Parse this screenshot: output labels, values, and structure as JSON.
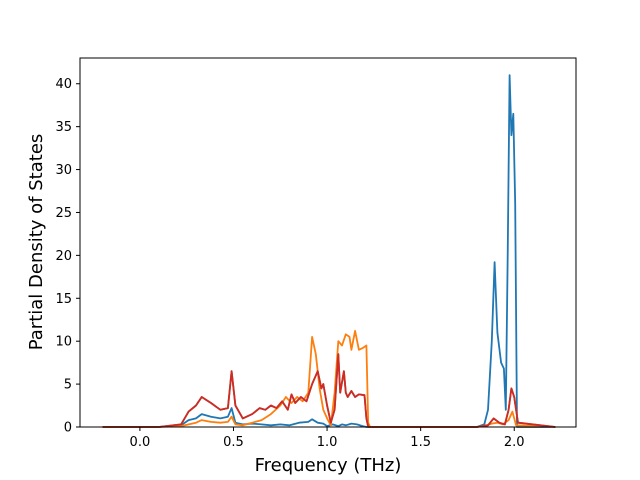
{
  "chart_data": {
    "type": "line",
    "title": "",
    "xlabel": "Frequency (THz)",
    "ylabel": "Partial Density of States",
    "xlim": [
      -0.32,
      2.33
    ],
    "ylim": [
      0,
      43
    ],
    "xticks": [
      0.0,
      0.5,
      1.0,
      1.5,
      2.0
    ],
    "xtick_labels": [
      "0.0",
      "0.5",
      "1.0",
      "1.5",
      "2.0"
    ],
    "yticks": [
      0,
      5,
      10,
      15,
      20,
      25,
      30,
      35,
      40
    ],
    "ytick_labels": [
      "0",
      "5",
      "10",
      "15",
      "20",
      "25",
      "30",
      "35",
      "40"
    ],
    "grid": false,
    "legend": "none",
    "series": [
      {
        "color": "#1f77b4",
        "x": [
          -0.2,
          0.1,
          0.22,
          0.26,
          0.3,
          0.33,
          0.38,
          0.43,
          0.47,
          0.49,
          0.51,
          0.55,
          0.6,
          0.65,
          0.7,
          0.75,
          0.8,
          0.85,
          0.9,
          0.92,
          0.95,
          0.98,
          1.0,
          1.03,
          1.06,
          1.08,
          1.1,
          1.13,
          1.16,
          1.19,
          1.21,
          1.23,
          1.4,
          1.8,
          1.84,
          1.86,
          1.88,
          1.895,
          1.91,
          1.93,
          1.945,
          1.955,
          1.965,
          1.975,
          1.985,
          1.995,
          2.005,
          2.015,
          2.22
        ],
        "values": [
          0,
          0,
          0.2,
          0.8,
          1.0,
          1.5,
          1.2,
          1.0,
          1.2,
          2.2,
          0.5,
          0.3,
          0.4,
          0.3,
          0.2,
          0.3,
          0.2,
          0.5,
          0.6,
          0.9,
          0.5,
          0.4,
          0.1,
          0.3,
          0.1,
          0.3,
          0.2,
          0.4,
          0.3,
          0.1,
          0.0,
          0,
          0,
          0,
          0.3,
          2.0,
          10.0,
          19.2,
          11.0,
          7.5,
          6.8,
          2.0,
          20.0,
          41.0,
          34.0,
          36.5,
          26.0,
          0,
          0
        ]
      },
      {
        "color": "#ff7f0e",
        "x": [
          -0.2,
          0.1,
          0.22,
          0.26,
          0.3,
          0.33,
          0.38,
          0.43,
          0.47,
          0.49,
          0.51,
          0.55,
          0.6,
          0.65,
          0.7,
          0.75,
          0.78,
          0.81,
          0.84,
          0.87,
          0.9,
          0.92,
          0.94,
          0.96,
          0.98,
          1.0,
          1.02,
          1.04,
          1.06,
          1.08,
          1.1,
          1.12,
          1.13,
          1.15,
          1.17,
          1.19,
          1.21,
          1.22,
          1.23,
          1.4,
          1.8,
          1.85,
          1.88,
          1.91,
          1.94,
          1.97,
          1.99,
          2.01,
          2.22
        ],
        "values": [
          0,
          0,
          0.1,
          0.3,
          0.5,
          0.8,
          0.6,
          0.5,
          0.6,
          1.2,
          0.3,
          0.2,
          0.5,
          0.8,
          1.5,
          2.5,
          3.5,
          2.8,
          3.5,
          3.0,
          4.0,
          10.5,
          8.5,
          4.5,
          2.0,
          1.0,
          0.2,
          4.0,
          10.0,
          9.5,
          10.8,
          10.5,
          9.0,
          11.2,
          9.0,
          9.2,
          9.5,
          0.5,
          0,
          0,
          0,
          0.2,
          0.4,
          0.5,
          0.3,
          0.8,
          1.8,
          0.2,
          0
        ]
      },
      {
        "color": "#2ca02c",
        "x": [
          -0.2,
          0.1,
          0.22,
          0.26,
          0.3,
          0.33,
          0.38,
          0.43,
          0.47,
          0.49,
          0.51,
          0.55,
          0.6,
          0.64,
          0.67,
          0.7,
          0.73,
          0.76,
          0.79,
          0.81,
          0.83,
          0.86,
          0.89,
          0.92,
          0.95,
          0.97,
          0.98,
          1.0,
          1.02,
          1.04,
          1.06,
          1.07,
          1.09,
          1.1,
          1.11,
          1.13,
          1.15,
          1.17,
          1.2,
          1.21,
          1.22,
          1.4,
          1.8,
          1.86,
          1.89,
          1.92,
          1.95,
          1.97,
          1.985,
          2.0,
          2.02,
          2.22
        ],
        "values": [
          0,
          0,
          0.3,
          1.8,
          2.5,
          3.5,
          2.8,
          2.0,
          2.2,
          6.5,
          2.5,
          1.0,
          1.5,
          2.2,
          2.0,
          2.5,
          2.2,
          3.0,
          2.0,
          3.8,
          2.8,
          3.5,
          3.0,
          5.0,
          6.5,
          4.5,
          5.0,
          2.5,
          0.5,
          2.0,
          8.5,
          4.0,
          6.5,
          4.0,
          3.5,
          4.2,
          3.5,
          3.8,
          3.7,
          1.0,
          0,
          0,
          0,
          0.2,
          1.0,
          0.5,
          0.3,
          2.0,
          4.5,
          3.5,
          0.5,
          0
        ]
      },
      {
        "color": "#d62728",
        "x": [
          -0.2,
          0.1,
          0.22,
          0.26,
          0.3,
          0.33,
          0.38,
          0.43,
          0.47,
          0.49,
          0.51,
          0.55,
          0.6,
          0.64,
          0.67,
          0.7,
          0.73,
          0.76,
          0.79,
          0.81,
          0.83,
          0.86,
          0.89,
          0.92,
          0.95,
          0.97,
          0.98,
          1.0,
          1.02,
          1.04,
          1.06,
          1.07,
          1.09,
          1.1,
          1.11,
          1.13,
          1.15,
          1.17,
          1.2,
          1.21,
          1.22,
          1.4,
          1.8,
          1.86,
          1.89,
          1.92,
          1.95,
          1.97,
          1.985,
          2.0,
          2.02,
          2.22
        ],
        "values": [
          0,
          0,
          0.3,
          1.8,
          2.5,
          3.5,
          2.8,
          2.0,
          2.2,
          6.5,
          2.5,
          1.0,
          1.5,
          2.2,
          2.0,
          2.5,
          2.2,
          3.0,
          2.0,
          3.8,
          2.8,
          3.5,
          3.0,
          5.0,
          6.5,
          4.5,
          5.0,
          2.5,
          0.5,
          2.0,
          8.5,
          4.0,
          6.5,
          4.0,
          3.5,
          4.2,
          3.5,
          3.8,
          3.7,
          1.0,
          0,
          0,
          0,
          0.2,
          1.0,
          0.5,
          0.3,
          2.0,
          4.5,
          3.5,
          0.5,
          0
        ]
      }
    ]
  }
}
